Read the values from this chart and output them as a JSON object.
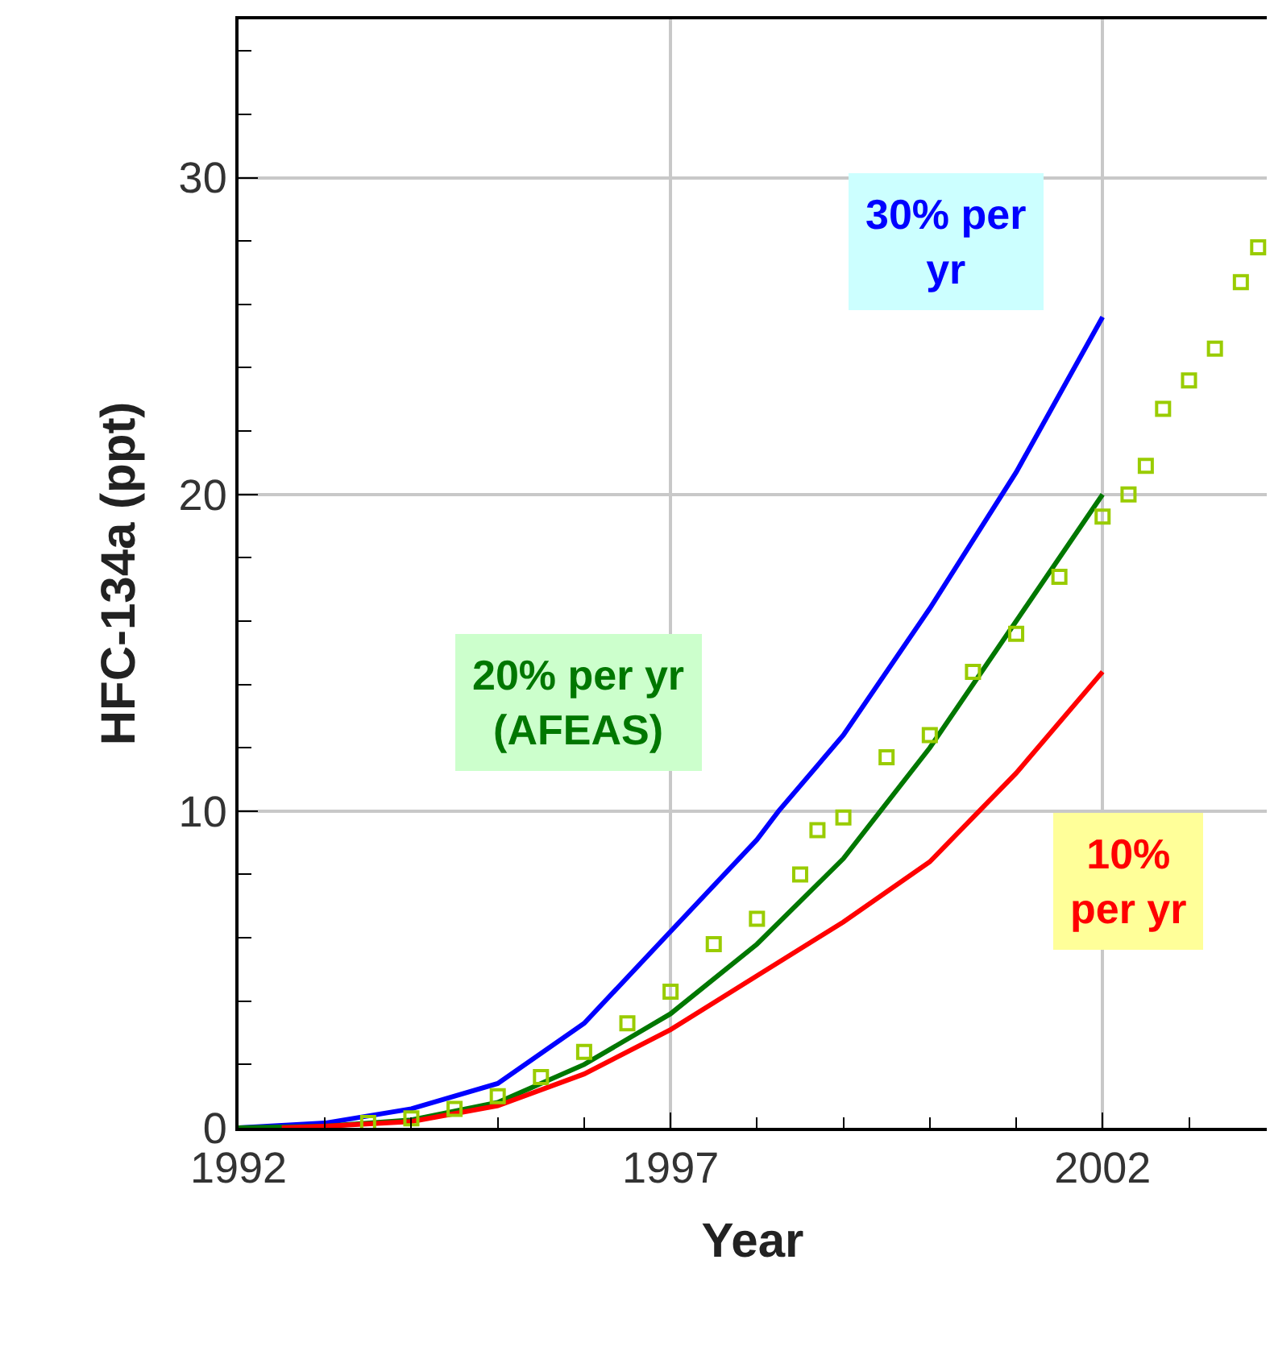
{
  "chart_data": {
    "type": "line",
    "xlabel": "Year",
    "ylabel": "HFC-134a (ppt)",
    "xlim": [
      1992,
      2003.9
    ],
    "ylim": [
      0,
      35
    ],
    "xticks": [
      1992,
      1997,
      2002
    ],
    "yticks": [
      0,
      10,
      20,
      30
    ],
    "grid": true,
    "legend": false,
    "series": [
      {
        "name": "30% per\nyr",
        "color": "#0000ff",
        "marker": "none",
        "x": [
          1992,
          1993,
          1994,
          1995,
          1996,
          1997,
          1998,
          1998.25,
          1999,
          2000,
          2001,
          2002
        ],
        "values": [
          0,
          0.15,
          0.6,
          1.4,
          3.3,
          6.2,
          9.1,
          10,
          12.4,
          16.4,
          20.7,
          25.6
        ]
      },
      {
        "name": "20% per yr\n(AFEAS)",
        "color": "#007700",
        "marker": "none",
        "x": [
          1992,
          1993,
          1994,
          1995,
          1996,
          1997,
          1998,
          1999,
          2000,
          2001,
          2002
        ],
        "values": [
          0,
          0.05,
          0.25,
          0.8,
          2.0,
          3.6,
          5.8,
          8.5,
          12.0,
          16.0,
          20.0
        ]
      },
      {
        "name": "10%\nper yr",
        "color": "#ff0000",
        "marker": "none",
        "x": [
          1992.5,
          1993,
          1994,
          1995,
          1996,
          1997,
          1998,
          1999,
          2000,
          2001,
          2002
        ],
        "values": [
          0,
          0.05,
          0.2,
          0.7,
          1.7,
          3.1,
          4.8,
          6.5,
          8.4,
          11.2,
          14.4
        ]
      },
      {
        "type": "scatter",
        "color": "#99cc00",
        "marker": "square",
        "x": [
          1993.5,
          1994,
          1994.5,
          1995,
          1995.5,
          1996,
          1996.5,
          1997,
          1997.5,
          1998,
          1998.5,
          1998.7,
          1999,
          1999.5,
          2000,
          2000.5,
          2001,
          2001.5,
          2002,
          2002.3,
          2002.5,
          2002.7,
          2003,
          2003.3,
          2003.6,
          2003.8
        ],
        "values": [
          0.15,
          0.3,
          0.6,
          1.0,
          1.6,
          2.4,
          3.3,
          4.3,
          5.8,
          6.6,
          8.0,
          9.4,
          9.8,
          11.7,
          12.4,
          14.4,
          15.6,
          17.4,
          19.3,
          20.0,
          20.9,
          22.7,
          23.6,
          24.6,
          26.7,
          27.8
        ]
      }
    ]
  }
}
